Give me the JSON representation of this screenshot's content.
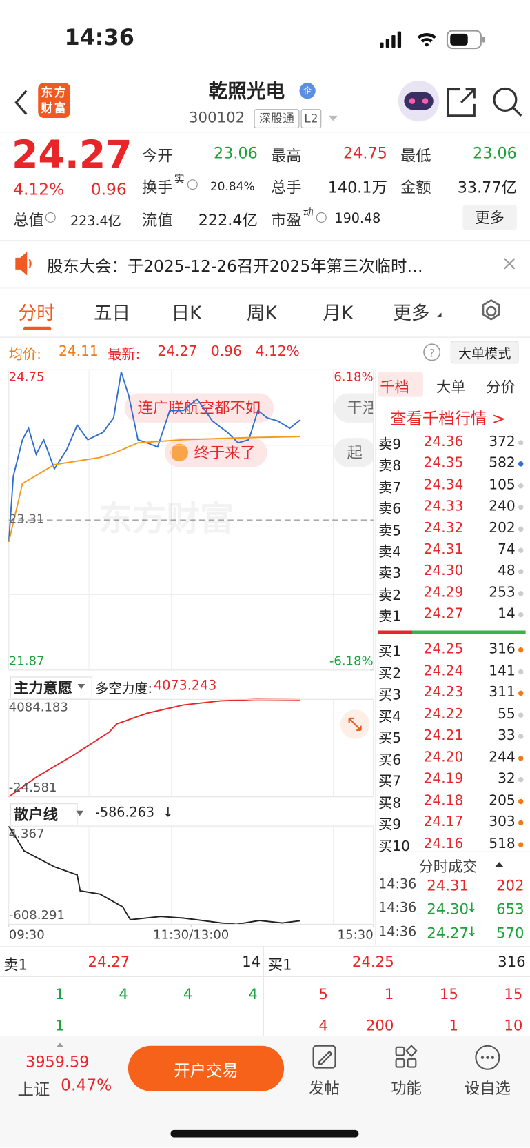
{
  "status": {
    "time": "14:36"
  },
  "header": {
    "logo": "东方财富",
    "title": "乾照光电",
    "badge": "企",
    "code": "300102",
    "tags": [
      "深股通",
      "L2"
    ]
  },
  "quote": {
    "price": "24.27",
    "change_pct": "4.12%",
    "change": "0.96",
    "fields": [
      {
        "label": "今开",
        "value": "23.06"
      },
      {
        "label": "最高",
        "value": "24.75"
      },
      {
        "label": "最低",
        "value": "23.06"
      },
      {
        "label": "换手",
        "sup": "实",
        "value": "20.84%"
      },
      {
        "label": "总手",
        "value": "140.1万"
      },
      {
        "label": "金额",
        "value": "33.77亿"
      },
      {
        "label": "总值",
        "value": "223.4亿"
      },
      {
        "label": "流值",
        "value": "222.4亿"
      },
      {
        "label": "市盈",
        "sup": "动",
        "value": "190.48"
      }
    ],
    "more": "更多"
  },
  "notice": "股东大会：于2025-12-26召开2025年第三次临时…",
  "tabs": [
    "分时",
    "五日",
    "日K",
    "周K",
    "月K",
    "更多"
  ],
  "chart_header": {
    "avg_label": "均价:",
    "avg": "24.11",
    "latest_label": "最新:",
    "latest": "24.27",
    "change": "0.96",
    "pct": "4.12%",
    "mode": "大单模式"
  },
  "charts": {
    "price": {
      "type": "line",
      "xlim": [
        0,
        240
      ],
      "xticks": [
        {
          "value": 0,
          "label": "09:30"
        },
        {
          "value": 120,
          "label": "11:30/13:00"
        },
        {
          "value": 240,
          "label": "15:30"
        }
      ],
      "ylim": [
        21.87,
        24.75
      ],
      "yticks": [
        24.75,
        23.31,
        21.87
      ],
      "y2lim": [
        -6.18,
        6.18
      ],
      "y2ticks": [
        {
          "value": 6.18,
          "label": "6.18%"
        },
        {
          "value": -6.18,
          "label": "-6.18%"
        }
      ],
      "watermark": "东方财富",
      "annotations": [
        "连广联航空都不如",
        "终于来了",
        "干活",
        "起"
      ],
      "series": [
        {
          "color": "#2f6fd0",
          "x": [
            0,
            3,
            9,
            13,
            18,
            23,
            30,
            38,
            45,
            52,
            62,
            69,
            74,
            79,
            85,
            91,
            98,
            106,
            115,
            124,
            134,
            144,
            151,
            158,
            164,
            170,
            177,
            185,
            192
          ],
          "values": [
            23.1,
            23.73,
            24.08,
            24.19,
            23.94,
            24.08,
            23.8,
            23.98,
            24.22,
            24.08,
            24.15,
            24.29,
            24.73,
            24.5,
            24.08,
            24.05,
            24.01,
            24.36,
            24.36,
            24.47,
            24.26,
            24.15,
            24.05,
            24.08,
            24.36,
            24.29,
            24.26,
            24.19,
            24.27
          ]
        },
        {
          "color": "#f39a1e",
          "x": [
            0,
            9,
            30,
            60,
            69,
            85,
            115,
            158,
            192
          ],
          "values": [
            23.1,
            23.66,
            23.84,
            23.91,
            23.95,
            24.05,
            24.08,
            24.1,
            24.11
          ]
        }
      ]
    },
    "main_force": {
      "type": "line",
      "name": "主力意愿",
      "metric_label": "多空力度:",
      "metric": "4073.243",
      "ylim": [
        -24.581,
        4084.183
      ],
      "yticks": [
        4084.183,
        -24.581
      ],
      "series": [
        {
          "color": "#e8262a",
          "x": [
            0,
            18,
            43,
            66,
            71,
            91,
            115,
            139,
            163,
            192
          ],
          "values": [
            -24.581,
            800,
            1750,
            2700,
            3050,
            3500,
            3850,
            4020,
            4084.183,
            4073.243
          ]
        }
      ]
    },
    "retail": {
      "type": "line",
      "name": "散户线",
      "metric": "-586.263",
      "arrow": "↓",
      "ylim": [
        -608.291,
        4.367
      ],
      "yticks": [
        4.367,
        -608.291
      ],
      "series": [
        {
          "color": "#222222",
          "x": [
            0,
            10,
            30,
            45,
            47,
            60,
            75,
            80,
            100,
            115,
            140,
            150,
            165,
            180,
            192
          ],
          "values": [
            4.367,
            -150,
            -250,
            -300,
            -400,
            -420,
            -500,
            -580,
            -560,
            -570,
            -600,
            -608.291,
            -585,
            -600,
            -586.263
          ]
        }
      ]
    }
  },
  "order_book": {
    "tabs": [
      "千档",
      "大单",
      "分价"
    ],
    "link": "查看千档行情 >",
    "asks": [
      {
        "label": "卖9",
        "price": "24.36",
        "vol": "372"
      },
      {
        "label": "卖8",
        "price": "24.35",
        "vol": "582"
      },
      {
        "label": "卖7",
        "price": "24.34",
        "vol": "105"
      },
      {
        "label": "卖6",
        "price": "24.33",
        "vol": "240"
      },
      {
        "label": "卖5",
        "price": "24.32",
        "vol": "202"
      },
      {
        "label": "卖4",
        "price": "24.31",
        "vol": "74"
      },
      {
        "label": "卖3",
        "price": "24.30",
        "vol": "48"
      },
      {
        "label": "卖2",
        "price": "24.29",
        "vol": "253"
      },
      {
        "label": "卖1",
        "price": "24.27",
        "vol": "14"
      }
    ],
    "bids": [
      {
        "label": "买1",
        "price": "24.25",
        "vol": "316"
      },
      {
        "label": "买2",
        "price": "24.24",
        "vol": "141"
      },
      {
        "label": "买3",
        "price": "24.23",
        "vol": "311"
      },
      {
        "label": "买4",
        "price": "24.22",
        "vol": "55"
      },
      {
        "label": "买5",
        "price": "24.21",
        "vol": "33"
      },
      {
        "label": "买6",
        "price": "24.20",
        "vol": "244"
      },
      {
        "label": "买7",
        "price": "24.19",
        "vol": "32"
      },
      {
        "label": "买8",
        "price": "24.18",
        "vol": "205"
      },
      {
        "label": "买9",
        "price": "24.17",
        "vol": "303"
      },
      {
        "label": "买10",
        "price": "24.16",
        "vol": "518"
      }
    ]
  },
  "trades": {
    "title": "分时成交",
    "rows": [
      {
        "time": "14:36",
        "price": "24.31",
        "vol": "202"
      },
      {
        "time": "14:36",
        "price": "24.30",
        "arrow": "↓",
        "vol": "653"
      },
      {
        "time": "14:36",
        "price": "24.27",
        "arrow": "↓",
        "vol": "570"
      }
    ]
  },
  "level": {
    "sell": {
      "label": "卖1",
      "price": "24.27",
      "vol": "14",
      "rows": [
        [
          "1",
          "4",
          "4",
          "4"
        ],
        [
          "1"
        ]
      ]
    },
    "buy": {
      "label": "买1",
      "price": "24.25",
      "vol": "316",
      "rows": [
        [
          "5",
          "1",
          "15",
          "15"
        ],
        [
          "4",
          "200",
          "1",
          "10"
        ]
      ]
    }
  },
  "footer": {
    "index_value": "3959.59",
    "index_name": "上证",
    "index_pct": "0.47%",
    "cta": "开户交易",
    "nav": [
      "发帖",
      "功能",
      "设自选"
    ]
  }
}
